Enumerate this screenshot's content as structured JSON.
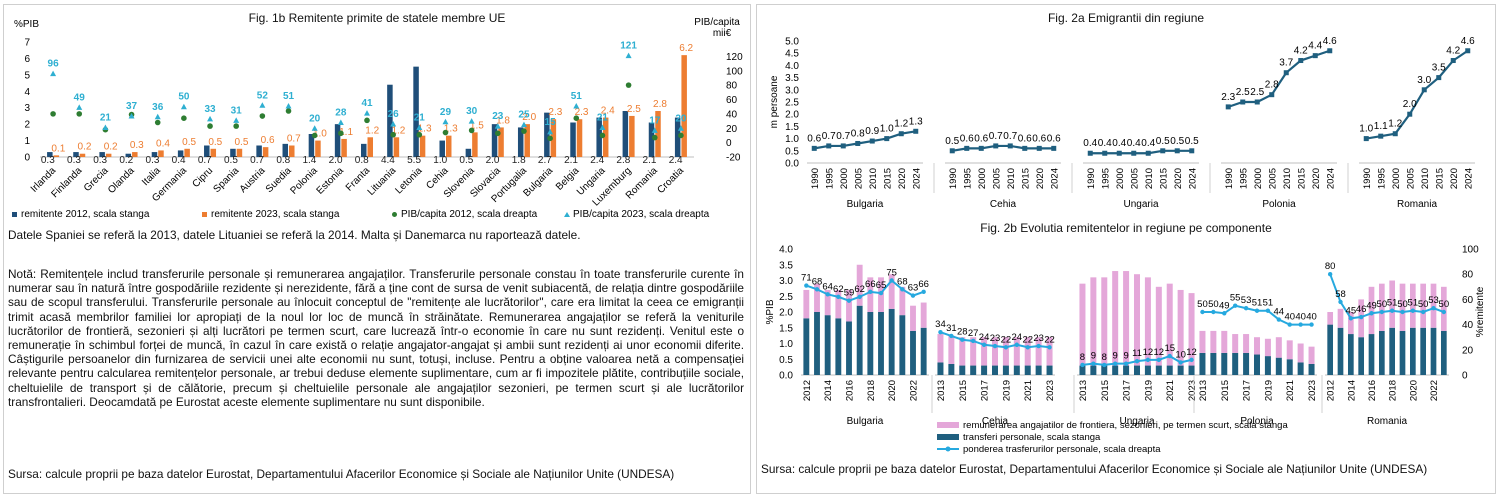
{
  "colors": {
    "dark": "#1f4e79",
    "orange": "#ed7d31",
    "green": "#2e7d32",
    "teal": "#2eafd1",
    "line": "#1f5f7f",
    "pink": "#e4a7d9",
    "lightblue": "#26a9df"
  },
  "left": {
    "note1": "Datele Spaniei se referă la 2013, datele Lituaniei se referă la 2014. Malta și Danemarca nu raportează datele.",
    "note2": "Notă: Remitențele includ transferurile personale și remunerarea angajaților. Transferurile personale constau în toate transferurile curente în numerar sau în natură între gospodăriile rezidente și nerezidente, fără a ține cont de sursa de venit subiacentă, de relația dintre gospodăriile sau de scopul transferului. Transferurile personale au înlocuit conceptul de \"remitențe ale lucrătorilor\", care era limitat la ceea ce emigranții trimit acasă membrilor familiei lor apropiați de la noul lor loc de muncă în străinătate. Remunerarea angajaților se referă la veniturile lucrătorilor de frontieră, sezonieri și alți lucrători pe termen scurt, care lucrează într-o economie în care nu sunt rezidenți. Venitul este o remunerație în schimbul forței de muncă, în cazul în care există o relație angajator-angajat și ambii sunt rezidenți ai unor economii diferite. Câștigurile persoanelor din furnizarea de servicii unei alte economii nu sunt, totuși, incluse. Pentru a obține valoarea netă a compensației relevante pentru calcularea remitențelor personale, ar trebui deduse elemente suplimentare, cum ar fi impozitele plătite, contribuțiile sociale, cheltuielile de transport și de călătorie, precum și cheltuielile personale ale angajaților sezonieri, pe termen scurt și ale lucrătorilor transfrontalieri. Deocamdată pe Eurostat aceste elemente suplimentare nu sunt disponibile.",
    "source": "Sursa: calcule proprii pe baza datelor Eurostat, Departamentului Afacerilor Economice și Sociale ale Națiunilor Unite (UNDESA)"
  },
  "right": {
    "source": "Sursa: calcule proprii pe baza datelor Eurostat, Departamentului Afacerilor Economice și Sociale ale Națiunilor Unite (UNDESA)"
  },
  "chart_data": [
    {
      "id": "fig1b",
      "type": "bar",
      "title": "Fig. 1b Remitente primite de  statele membre  UE",
      "ylabel_left": "%PIB",
      "ylabel_right": "PIB/capita mii€",
      "ylim_left": [
        0,
        7
      ],
      "ylim_right": [
        -20,
        140
      ],
      "yticks_left": [
        "0",
        "1",
        "2",
        "3",
        "4",
        "5",
        "6",
        "7"
      ],
      "yticks_right": [
        "-20",
        "0",
        "20",
        "40",
        "60",
        "80",
        "100",
        "120"
      ],
      "categories": [
        "Irlanda",
        "Finlanda",
        "Grecia",
        "Olanda",
        "Italia",
        "Germania",
        "Cipru",
        "Spania",
        "Austria",
        "Suedia",
        "Polonia",
        "Estonia",
        "Franta",
        "Lituania",
        "Letonia",
        "Cehia",
        "Slovenia",
        "Slovacia",
        "Portugalia",
        "Bulgaria",
        "Belgia",
        "Ungaria",
        "Luxemburg",
        "Romania",
        "Croatia"
      ],
      "series": [
        {
          "name": "remitente 2012, scala stanga",
          "kind": "bar",
          "axis": "left",
          "values": [
            0.3,
            0.3,
            0.3,
            0.2,
            0.3,
            0.4,
            0.7,
            0.5,
            0.7,
            0.8,
            1.4,
            2.0,
            0.8,
            4.4,
            5.5,
            1.0,
            0.5,
            2.0,
            1.8,
            2.7,
            2.1,
            2.4,
            2.8,
            2.1,
            2.4
          ],
          "labels": [
            "0.3",
            "0.3",
            "0.3",
            "0.2",
            "0.3",
            "0.4",
            "0.7",
            "0.5",
            "0.7",
            "0.8",
            "1.4",
            "2.0",
            "0.8",
            "4.4",
            "5.5",
            "1.0",
            "0.5",
            "2.0",
            "1.8",
            "2.7",
            "2.1",
            "2.4",
            "2.8",
            "2.1",
            "2.4"
          ]
        },
        {
          "name": "remitente 2023, scala stanga",
          "kind": "bar",
          "axis": "left",
          "values": [
            0.1,
            0.2,
            0.2,
            0.3,
            0.4,
            0.5,
            0.5,
            0.5,
            0.6,
            0.7,
            1.0,
            1.1,
            1.2,
            1.2,
            1.3,
            1.3,
            1.5,
            1.8,
            2.0,
            2.3,
            2.3,
            2.4,
            2.5,
            2.8,
            6.2
          ],
          "labels": [
            "0.1",
            "0.2",
            "0.2",
            "0.3",
            "0.4",
            "0.5",
            "0.5",
            "0.5",
            "0.6",
            "0.7",
            "1.0",
            "1.1",
            "1.2",
            "1.2",
            "1.3",
            "1.3",
            "1.5",
            "1.8",
            "2.0",
            "2.3",
            "2.3",
            "2.4",
            "2.5",
            "2.8",
            "6.2"
          ]
        },
        {
          "name": "PIB/capita 2012, scala dreapta",
          "kind": "dot",
          "axis": "right",
          "values": [
            40,
            40,
            18,
            39,
            28,
            34,
            23,
            23,
            37,
            44,
            10,
            13,
            31,
            11,
            11,
            14,
            17,
            13,
            16,
            6,
            34,
            10,
            80,
            7,
            10
          ]
        },
        {
          "name": "PIB/capita 2023, scala dreapta",
          "kind": "triangle",
          "axis": "right",
          "values": [
            96,
            49,
            21,
            37,
            36,
            50,
            33,
            31,
            52,
            51,
            20,
            28,
            41,
            26,
            21,
            29,
            30,
            23,
            25,
            15,
            51,
            21,
            121,
            17,
            20
          ],
          "labels": [
            "96",
            "49",
            "21",
            "37",
            "36",
            "50",
            "33",
            "31",
            "52",
            "51",
            "20",
            "28",
            "41",
            "26",
            "21",
            "29",
            "30",
            "23",
            "25",
            "15",
            "51",
            "21",
            "121",
            "17",
            "20"
          ]
        }
      ]
    },
    {
      "id": "fig2a",
      "type": "line",
      "title": "Fig. 2a Emigrantii din regiune",
      "ylabel": "m persoane",
      "ylim": [
        0,
        5.0
      ],
      "yticks": [
        "0.0",
        "0.5",
        "1.0",
        "1.5",
        "2.0",
        "2.5",
        "3.0",
        "3.5",
        "4.0",
        "4.5",
        "5.0"
      ],
      "x": [
        "1990",
        "1995",
        "2000",
        "2005",
        "2010",
        "2015",
        "2020",
        "2024"
      ],
      "groups": [
        {
          "name": "Bulgaria",
          "values": [
            0.6,
            0.7,
            0.7,
            0.8,
            0.9,
            1.0,
            1.2,
            1.3
          ],
          "labels": [
            "0.6",
            "0.7",
            "0.7",
            "0.8",
            "0.9",
            "1.0",
            "1.2",
            "1.3"
          ]
        },
        {
          "name": "Cehia",
          "values": [
            0.5,
            0.6,
            0.6,
            0.7,
            0.7,
            0.6,
            0.6,
            0.6
          ],
          "labels": [
            "0.5",
            "0.6",
            "0.6",
            "0.7",
            "0.7",
            "0.6",
            "0.6",
            "0.6"
          ]
        },
        {
          "name": "Ungaria",
          "values": [
            0.4,
            0.4,
            0.4,
            0.4,
            0.4,
            0.5,
            0.5,
            0.5
          ],
          "labels": [
            "0.4",
            "0.4",
            "0.4",
            "0.4",
            "0.4",
            "0.5",
            "0.5",
            "0.5"
          ]
        },
        {
          "name": "Polonia",
          "values": [
            2.3,
            2.5,
            2.5,
            2.8,
            3.7,
            4.2,
            4.4,
            4.6
          ],
          "labels": [
            "2.3",
            "2.5",
            "2.5",
            "2.8",
            "3.7",
            "4.2",
            "4.4",
            "4.6"
          ]
        },
        {
          "name": "Romania",
          "values": [
            1.0,
            1.1,
            1.2,
            2.0,
            3.0,
            3.5,
            4.2,
            4.6
          ],
          "labels": [
            "1.0",
            "1.1",
            "1.2",
            "2.0",
            "3.0",
            "3.5",
            "4.2",
            "4.6"
          ]
        }
      ]
    },
    {
      "id": "fig2b",
      "type": "bar",
      "title": "Fig. 2b Evolutia remitentelor in regiune pe componente",
      "ylabel_left": "%PIB",
      "ylabel_right": "%remitente",
      "ylim_left": [
        0,
        4.0
      ],
      "ylim_right": [
        0,
        100
      ],
      "yticks_left": [
        "0.0",
        "0.5",
        "1.0",
        "1.5",
        "2.0",
        "2.5",
        "3.0",
        "3.5",
        "4.0"
      ],
      "yticks_right": [
        "0",
        "20",
        "40",
        "60",
        "80",
        "100"
      ],
      "xticks": [
        "2012",
        "2014",
        "2016",
        "2018",
        "2020",
        "2022",
        "2013",
        "2015",
        "2017",
        "2019",
        "2021",
        "2023",
        "2013",
        "2015",
        "2017",
        "2019",
        "2021",
        "2023",
        "2013",
        "2015",
        "2017",
        "2019",
        "2021",
        "2023",
        "2012",
        "2014",
        "2016",
        "2018",
        "2020",
        "2022"
      ],
      "groups": [
        {
          "name": "Bulgaria",
          "years": [
            "2012",
            "2013",
            "2014",
            "2015",
            "2016",
            "2017",
            "2018",
            "2019",
            "2020",
            "2021",
            "2022",
            "2023"
          ],
          "transfers": [
            1.8,
            2.0,
            1.9,
            1.8,
            1.7,
            2.2,
            2.0,
            2.0,
            2.1,
            1.9,
            1.4,
            1.5
          ],
          "remuneration": [
            0.9,
            0.9,
            0.8,
            0.9,
            1.0,
            1.3,
            1.1,
            1.1,
            1.1,
            0.9,
            0.8,
            0.8
          ],
          "share": [
            71,
            68,
            64,
            62,
            59,
            62,
            66,
            65,
            75,
            68,
            63,
            66
          ]
        },
        {
          "name": "Cehia",
          "years": [
            "2013",
            "2014",
            "2015",
            "2016",
            "2017",
            "2018",
            "2019",
            "2020",
            "2021",
            "2022",
            "2023"
          ],
          "transfers": [
            0.4,
            0.35,
            0.3,
            0.3,
            0.3,
            0.3,
            0.3,
            0.3,
            0.3,
            0.3,
            0.3
          ],
          "remuneration": [
            0.9,
            0.9,
            0.9,
            0.9,
            0.9,
            0.9,
            0.9,
            0.9,
            0.9,
            0.9,
            0.9
          ],
          "share": [
            34,
            31,
            28,
            27,
            24,
            23,
            22,
            24,
            22,
            23,
            22
          ]
        },
        {
          "name": "Ungaria",
          "years": [
            "2013",
            "2014",
            "2015",
            "2016",
            "2017",
            "2018",
            "2019",
            "2020",
            "2021",
            "2022",
            "2023"
          ],
          "transfers": [
            0.3,
            0.3,
            0.3,
            0.3,
            0.3,
            0.3,
            0.3,
            0.3,
            0.3,
            0.3,
            0.3
          ],
          "remuneration": [
            2.6,
            2.8,
            2.8,
            3.0,
            3.0,
            2.9,
            2.8,
            2.5,
            2.6,
            2.4,
            2.3
          ],
          "share": [
            8,
            9,
            8,
            9,
            9,
            11,
            12,
            12,
            15,
            10,
            12
          ]
        },
        {
          "name": "Polonia",
          "years": [
            "2013",
            "2014",
            "2015",
            "2016",
            "2017",
            "2018",
            "2019",
            "2020",
            "2021",
            "2022",
            "2023"
          ],
          "transfers": [
            0.7,
            0.7,
            0.7,
            0.7,
            0.7,
            0.65,
            0.6,
            0.55,
            0.5,
            0.4,
            0.35
          ],
          "remuneration": [
            0.7,
            0.7,
            0.7,
            0.6,
            0.6,
            0.55,
            0.55,
            0.65,
            0.6,
            0.6,
            0.55
          ],
          "share": [
            50,
            50,
            49,
            55,
            53,
            51,
            51,
            44,
            40,
            40,
            40
          ]
        },
        {
          "name": "Romania",
          "years": [
            "2012",
            "2013",
            "2014",
            "2015",
            "2016",
            "2017",
            "2018",
            "2019",
            "2020",
            "2021",
            "2022",
            "2023"
          ],
          "transfers": [
            1.6,
            1.5,
            1.3,
            1.2,
            1.3,
            1.4,
            1.5,
            1.4,
            1.5,
            1.5,
            1.5,
            1.4
          ],
          "remuneration": [
            0.4,
            0.6,
            0.7,
            1.2,
            1.5,
            1.5,
            1.5,
            1.5,
            1.4,
            1.4,
            1.4,
            1.4
          ],
          "share": [
            80,
            58,
            45,
            46,
            49,
            50,
            51,
            50,
            51,
            50,
            53,
            50
          ]
        }
      ],
      "legend": [
        "remunerarea angajatilor de frontiera, sezonieri, pe termen scurt, scala stanga",
        "transferi personale, scala stanga",
        "ponderea trasferurilor personale, scala dreapta"
      ]
    }
  ]
}
